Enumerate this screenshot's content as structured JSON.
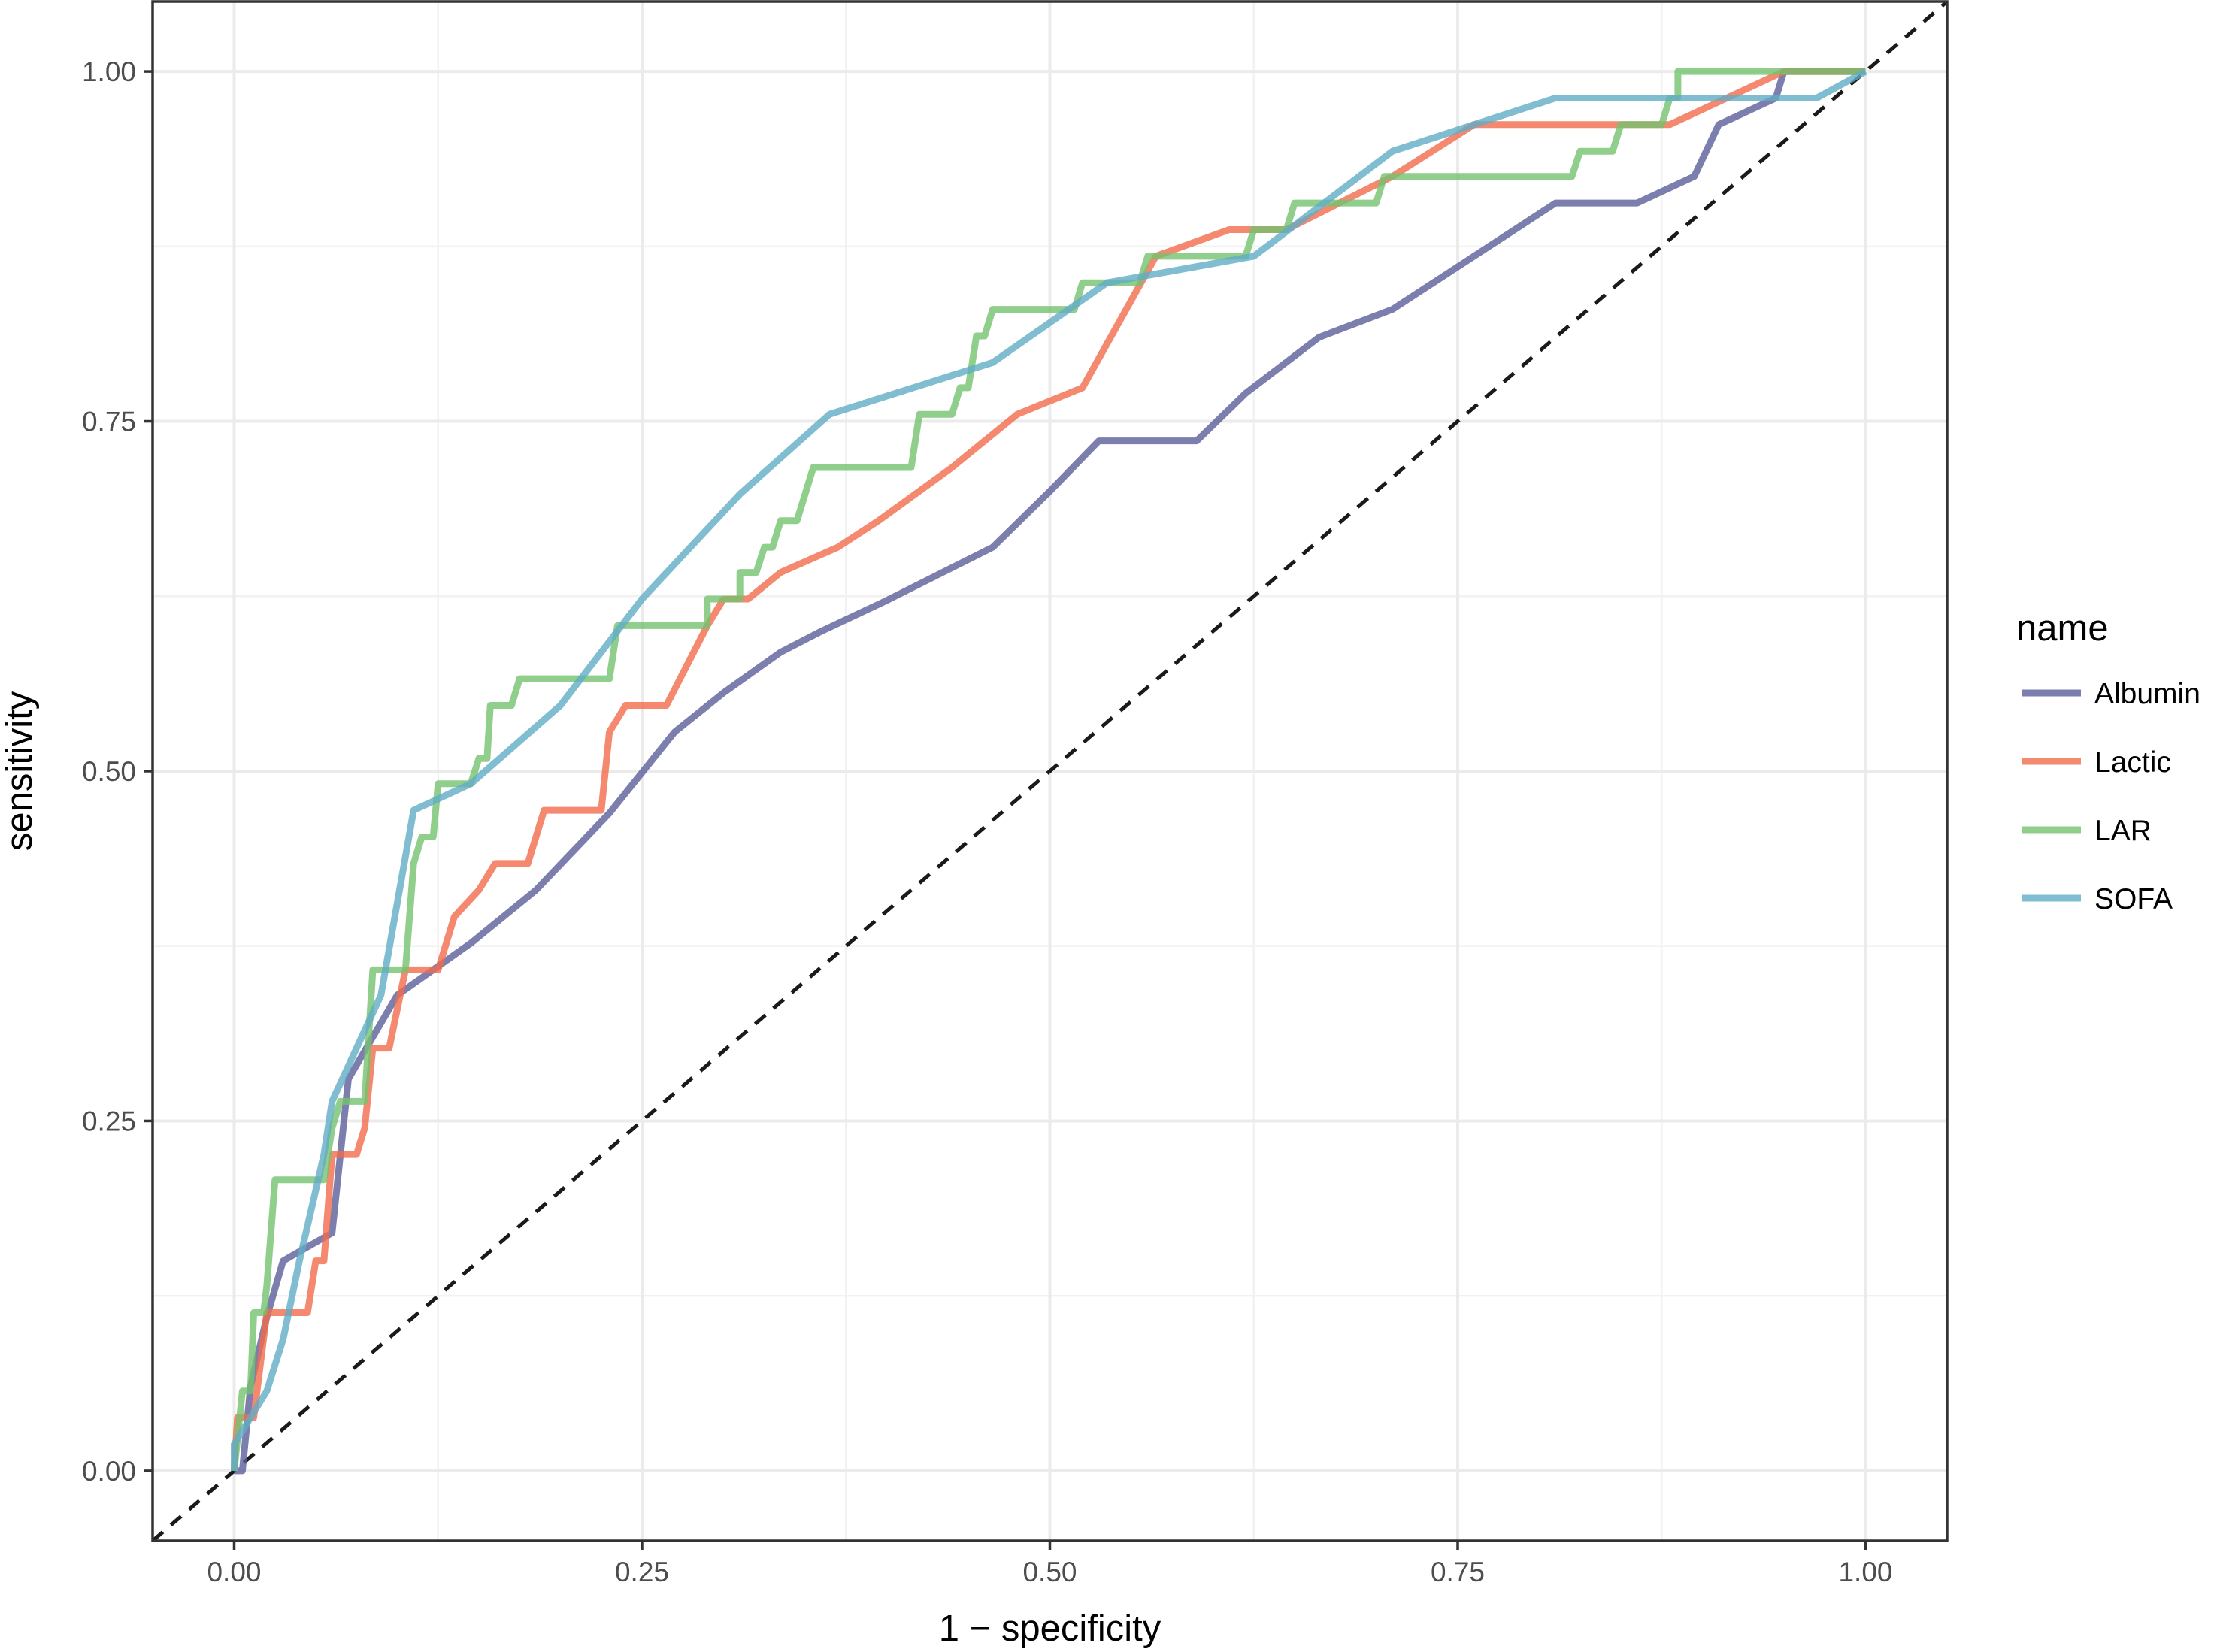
{
  "chart_data": {
    "type": "line",
    "title": "",
    "xlabel": "1 − specificity",
    "ylabel": "sensitivity",
    "xlim": [
      -0.05,
      1.05
    ],
    "ylim": [
      -0.05,
      1.05
    ],
    "x_ticks": [
      0,
      0.25,
      0.5,
      0.75,
      1
    ],
    "y_ticks": [
      0,
      0.25,
      0.5,
      0.75,
      1
    ],
    "x_tick_labels": [
      "0.00",
      "0.25",
      "0.50",
      "0.75",
      "1.00"
    ],
    "y_tick_labels": [
      "0.00",
      "0.25",
      "0.50",
      "0.75",
      "1.00"
    ],
    "grid": true,
    "legend": {
      "title": "name",
      "placement": "right"
    },
    "reference_line": {
      "style": "dashed",
      "color": "#1a1a1a",
      "from": [
        0,
        0
      ],
      "to": [
        1,
        1
      ]
    },
    "series": [
      {
        "name": "Albumin",
        "color": "#5b5f9a",
        "points": [
          [
            0.0,
            0.0
          ],
          [
            0.005,
            0.0
          ],
          [
            0.01,
            0.06
          ],
          [
            0.02,
            0.11
          ],
          [
            0.03,
            0.15
          ],
          [
            0.06,
            0.17
          ],
          [
            0.07,
            0.28
          ],
          [
            0.1,
            0.34
          ],
          [
            0.145,
            0.377
          ],
          [
            0.185,
            0.415
          ],
          [
            0.23,
            0.47
          ],
          [
            0.27,
            0.528
          ],
          [
            0.3,
            0.556
          ],
          [
            0.335,
            0.585
          ],
          [
            0.36,
            0.6
          ],
          [
            0.4,
            0.622
          ],
          [
            0.465,
            0.66
          ],
          [
            0.5,
            0.7
          ],
          [
            0.53,
            0.736
          ],
          [
            0.59,
            0.736
          ],
          [
            0.62,
            0.77
          ],
          [
            0.665,
            0.81
          ],
          [
            0.71,
            0.83
          ],
          [
            0.76,
            0.868
          ],
          [
            0.81,
            0.906
          ],
          [
            0.86,
            0.906
          ],
          [
            0.895,
            0.925
          ],
          [
            0.91,
            0.962
          ],
          [
            0.945,
            0.981
          ],
          [
            0.95,
            1.0
          ],
          [
            1.0,
            1.0
          ]
        ]
      },
      {
        "name": "Lactic",
        "color": "#f16c4c",
        "points": [
          [
            0.0,
            0.0
          ],
          [
            0.002,
            0.038
          ],
          [
            0.012,
            0.038
          ],
          [
            0.02,
            0.113
          ],
          [
            0.045,
            0.113
          ],
          [
            0.05,
            0.15
          ],
          [
            0.055,
            0.15
          ],
          [
            0.06,
            0.226
          ],
          [
            0.075,
            0.226
          ],
          [
            0.08,
            0.245
          ],
          [
            0.085,
            0.302
          ],
          [
            0.095,
            0.302
          ],
          [
            0.105,
            0.358
          ],
          [
            0.125,
            0.358
          ],
          [
            0.135,
            0.396
          ],
          [
            0.15,
            0.415
          ],
          [
            0.16,
            0.434
          ],
          [
            0.18,
            0.434
          ],
          [
            0.19,
            0.472
          ],
          [
            0.225,
            0.472
          ],
          [
            0.23,
            0.528
          ],
          [
            0.24,
            0.547
          ],
          [
            0.265,
            0.547
          ],
          [
            0.29,
            0.604
          ],
          [
            0.3,
            0.623
          ],
          [
            0.315,
            0.623
          ],
          [
            0.335,
            0.642
          ],
          [
            0.37,
            0.66
          ],
          [
            0.395,
            0.679
          ],
          [
            0.44,
            0.717
          ],
          [
            0.48,
            0.755
          ],
          [
            0.52,
            0.774
          ],
          [
            0.565,
            0.868
          ],
          [
            0.61,
            0.887
          ],
          [
            0.645,
            0.887
          ],
          [
            0.71,
            0.925
          ],
          [
            0.76,
            0.962
          ],
          [
            0.88,
            0.962
          ],
          [
            0.95,
            1.0
          ],
          [
            1.0,
            1.0
          ]
        ]
      },
      {
        "name": "LAR",
        "color": "#74c26f",
        "points": [
          [
            0.0,
            0.0
          ],
          [
            0.005,
            0.057
          ],
          [
            0.01,
            0.057
          ],
          [
            0.012,
            0.113
          ],
          [
            0.018,
            0.113
          ],
          [
            0.02,
            0.132
          ],
          [
            0.025,
            0.208
          ],
          [
            0.055,
            0.208
          ],
          [
            0.06,
            0.245
          ],
          [
            0.065,
            0.264
          ],
          [
            0.08,
            0.264
          ],
          [
            0.085,
            0.358
          ],
          [
            0.105,
            0.358
          ],
          [
            0.11,
            0.434
          ],
          [
            0.115,
            0.453
          ],
          [
            0.122,
            0.453
          ],
          [
            0.125,
            0.491
          ],
          [
            0.145,
            0.491
          ],
          [
            0.15,
            0.509
          ],
          [
            0.155,
            0.509
          ],
          [
            0.157,
            0.547
          ],
          [
            0.17,
            0.547
          ],
          [
            0.175,
            0.566
          ],
          [
            0.23,
            0.566
          ],
          [
            0.235,
            0.604
          ],
          [
            0.29,
            0.604
          ],
          [
            0.29,
            0.623
          ],
          [
            0.31,
            0.623
          ],
          [
            0.31,
            0.642
          ],
          [
            0.32,
            0.642
          ],
          [
            0.325,
            0.66
          ],
          [
            0.33,
            0.66
          ],
          [
            0.335,
            0.679
          ],
          [
            0.345,
            0.679
          ],
          [
            0.355,
            0.717
          ],
          [
            0.415,
            0.717
          ],
          [
            0.42,
            0.755
          ],
          [
            0.44,
            0.755
          ],
          [
            0.445,
            0.774
          ],
          [
            0.45,
            0.774
          ],
          [
            0.455,
            0.811
          ],
          [
            0.46,
            0.811
          ],
          [
            0.465,
            0.83
          ],
          [
            0.515,
            0.83
          ],
          [
            0.52,
            0.849
          ],
          [
            0.555,
            0.849
          ],
          [
            0.56,
            0.868
          ],
          [
            0.62,
            0.868
          ],
          [
            0.625,
            0.887
          ],
          [
            0.645,
            0.887
          ],
          [
            0.65,
            0.906
          ],
          [
            0.7,
            0.906
          ],
          [
            0.705,
            0.925
          ],
          [
            0.82,
            0.925
          ],
          [
            0.825,
            0.943
          ],
          [
            0.845,
            0.943
          ],
          [
            0.85,
            0.962
          ],
          [
            0.875,
            0.962
          ],
          [
            0.88,
            0.981
          ],
          [
            0.885,
            0.981
          ],
          [
            0.885,
            1.0
          ],
          [
            1.0,
            1.0
          ]
        ]
      },
      {
        "name": "SOFA",
        "color": "#62adc5",
        "points": [
          [
            0.0,
            0.0
          ],
          [
            0.0,
            0.019
          ],
          [
            0.01,
            0.038
          ],
          [
            0.02,
            0.057
          ],
          [
            0.03,
            0.094
          ],
          [
            0.04,
            0.15
          ],
          [
            0.055,
            0.226
          ],
          [
            0.06,
            0.264
          ],
          [
            0.09,
            0.34
          ],
          [
            0.11,
            0.472
          ],
          [
            0.145,
            0.491
          ],
          [
            0.2,
            0.547
          ],
          [
            0.25,
            0.623
          ],
          [
            0.31,
            0.698
          ],
          [
            0.365,
            0.755
          ],
          [
            0.465,
            0.792
          ],
          [
            0.535,
            0.849
          ],
          [
            0.625,
            0.868
          ],
          [
            0.71,
            0.943
          ],
          [
            0.76,
            0.962
          ],
          [
            0.81,
            0.981
          ],
          [
            0.97,
            0.981
          ],
          [
            1.0,
            1.0
          ]
        ]
      }
    ]
  }
}
